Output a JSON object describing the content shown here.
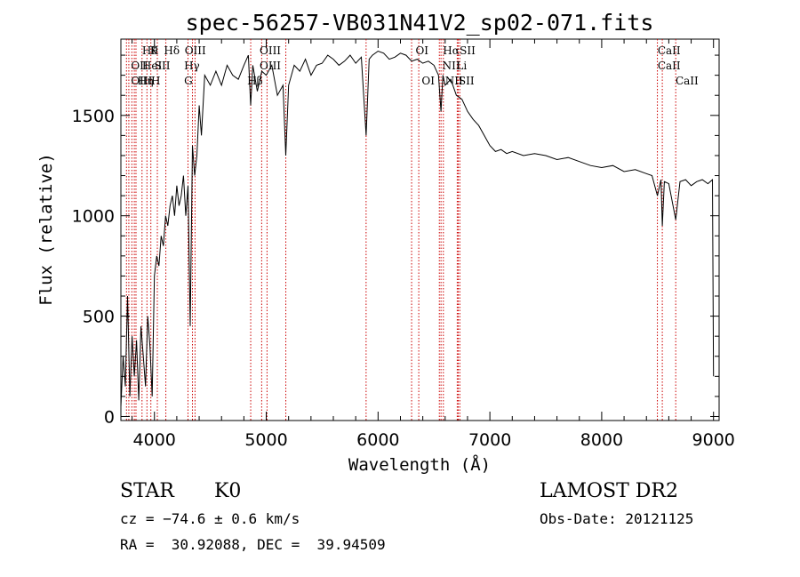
{
  "chart_data": {
    "type": "line",
    "title": "spec-56257-VB031N41V2_sp02-071.fits",
    "xlabel": "Wavelength (Å)",
    "ylabel": "Flux (relative)",
    "xlim": [
      3700,
      9050
    ],
    "ylim": [
      -20,
      1880
    ],
    "x_ticks": [
      4000,
      5000,
      6000,
      7000,
      8000,
      9000
    ],
    "y_ticks": [
      0,
      500,
      1000,
      1500
    ],
    "grid": false,
    "series_color": "#000000",
    "line_marker_color": "#cc0000",
    "spectrum": {
      "x": [
        3700,
        3720,
        3740,
        3760,
        3780,
        3800,
        3820,
        3840,
        3860,
        3880,
        3900,
        3920,
        3940,
        3960,
        3980,
        4000,
        4020,
        4040,
        4060,
        4080,
        4100,
        4120,
        4140,
        4160,
        4180,
        4200,
        4220,
        4240,
        4260,
        4280,
        4300,
        4320,
        4340,
        4360,
        4380,
        4400,
        4420,
        4450,
        4500,
        4550,
        4600,
        4650,
        4700,
        4750,
        4800,
        4840,
        4861,
        4880,
        4920,
        4960,
        5000,
        5050,
        5100,
        5150,
        5175,
        5200,
        5250,
        5300,
        5350,
        5400,
        5450,
        5500,
        5550,
        5600,
        5650,
        5700,
        5750,
        5800,
        5850,
        5893,
        5920,
        5950,
        6000,
        6050,
        6100,
        6150,
        6200,
        6250,
        6300,
        6350,
        6400,
        6450,
        6500,
        6540,
        6563,
        6580,
        6600,
        6650,
        6700,
        6750,
        6800,
        6850,
        6900,
        6950,
        7000,
        7050,
        7100,
        7150,
        7200,
        7300,
        7400,
        7500,
        7600,
        7700,
        7800,
        7900,
        8000,
        8100,
        8200,
        8300,
        8400,
        8450,
        8498,
        8530,
        8542,
        8560,
        8600,
        8662,
        8700,
        8750,
        8800,
        8850,
        8900,
        8950,
        8990,
        9000
      ],
      "y": [
        50,
        300,
        150,
        600,
        100,
        400,
        200,
        380,
        80,
        450,
        300,
        150,
        500,
        350,
        100,
        700,
        800,
        750,
        900,
        850,
        1000,
        950,
        1050,
        1100,
        1000,
        1150,
        1050,
        1100,
        1200,
        1000,
        1150,
        450,
        1350,
        1200,
        1300,
        1550,
        1400,
        1700,
        1650,
        1720,
        1650,
        1750,
        1700,
        1680,
        1750,
        1800,
        1550,
        1750,
        1620,
        1720,
        1700,
        1750,
        1600,
        1650,
        1300,
        1650,
        1750,
        1720,
        1780,
        1700,
        1750,
        1760,
        1800,
        1780,
        1750,
        1770,
        1800,
        1760,
        1790,
        1400,
        1780,
        1800,
        1820,
        1810,
        1780,
        1790,
        1810,
        1800,
        1770,
        1780,
        1760,
        1770,
        1750,
        1700,
        1520,
        1700,
        1650,
        1680,
        1600,
        1580,
        1520,
        1480,
        1450,
        1400,
        1350,
        1320,
        1330,
        1310,
        1320,
        1300,
        1310,
        1300,
        1280,
        1290,
        1270,
        1250,
        1240,
        1250,
        1220,
        1230,
        1210,
        1200,
        1100,
        1180,
        950,
        1170,
        1160,
        980,
        1170,
        1180,
        1150,
        1170,
        1180,
        1160,
        1180,
        200
      ]
    },
    "line_markers": [
      {
        "x": 3750,
        "label": ""
      },
      {
        "x": 3771,
        "label": ""
      },
      {
        "x": 3798,
        "label": ""
      },
      {
        "x": 3820,
        "label": ""
      },
      {
        "x": 3835,
        "label": ""
      },
      {
        "x": 3889,
        "label": ""
      },
      {
        "x": 3933,
        "label": ""
      },
      {
        "x": 3968,
        "label": ""
      },
      {
        "x": 4026,
        "label": ""
      },
      {
        "x": 4102,
        "label": ""
      },
      {
        "x": 4300,
        "label": ""
      },
      {
        "x": 4340,
        "label": ""
      },
      {
        "x": 4363,
        "label": ""
      },
      {
        "x": 4861,
        "label": ""
      },
      {
        "x": 4959,
        "label": ""
      },
      {
        "x": 5007,
        "label": ""
      },
      {
        "x": 5175,
        "label": ""
      },
      {
        "x": 5893,
        "label": ""
      },
      {
        "x": 6300,
        "label": ""
      },
      {
        "x": 6364,
        "label": ""
      },
      {
        "x": 6548,
        "label": ""
      },
      {
        "x": 6563,
        "label": ""
      },
      {
        "x": 6584,
        "label": ""
      },
      {
        "x": 6708,
        "label": ""
      },
      {
        "x": 6717,
        "label": ""
      },
      {
        "x": 6731,
        "label": ""
      },
      {
        "x": 8498,
        "label": ""
      },
      {
        "x": 8542,
        "label": ""
      },
      {
        "x": 8662,
        "label": ""
      }
    ],
    "line_labels": [
      {
        "x": 3890,
        "row": 0,
        "text": "Hθ"
      },
      {
        "x": 3960,
        "row": 0,
        "text": "K"
      },
      {
        "x": 4085,
        "row": 0,
        "text": "Hδ"
      },
      {
        "x": 4270,
        "row": 0,
        "text": "OIII"
      },
      {
        "x": 4940,
        "row": 0,
        "text": "OIII"
      },
      {
        "x": 6335,
        "row": 0,
        "text": "OI"
      },
      {
        "x": 6580,
        "row": 0,
        "text": "Hα"
      },
      {
        "x": 6730,
        "row": 0,
        "text": "SII"
      },
      {
        "x": 8500,
        "row": 0,
        "text": "CaII"
      },
      {
        "x": 3790,
        "row": 1,
        "text": "OII"
      },
      {
        "x": 3890,
        "row": 1,
        "text": "HeI"
      },
      {
        "x": 4000,
        "row": 1,
        "text": "SII"
      },
      {
        "x": 4265,
        "row": 1,
        "text": "Hγ"
      },
      {
        "x": 4940,
        "row": 1,
        "text": "OIII"
      },
      {
        "x": 6575,
        "row": 1,
        "text": "NII"
      },
      {
        "x": 6700,
        "row": 1,
        "text": "Li"
      },
      {
        "x": 8500,
        "row": 1,
        "text": "CaII"
      },
      {
        "x": 3790,
        "row": 2,
        "text": "OIII"
      },
      {
        "x": 3850,
        "row": 2,
        "text": "Hη"
      },
      {
        "x": 3970,
        "row": 2,
        "text": "H"
      },
      {
        "x": 4265,
        "row": 2,
        "text": "G"
      },
      {
        "x": 4830,
        "row": 2,
        "text": "Hβ"
      },
      {
        "x": 6390,
        "row": 2,
        "text": "OI"
      },
      {
        "x": 6600,
        "row": 2,
        "text": "NII"
      },
      {
        "x": 6720,
        "row": 2,
        "text": "SII"
      },
      {
        "x": 8660,
        "row": 2,
        "text": "CaII"
      }
    ]
  },
  "info": {
    "object_class": "STAR",
    "subclass": "K0",
    "survey": "LAMOST DR2",
    "redshift": "cz = −74.6 ± 0.6 km/s",
    "obs_date": "Obs-Date: 20121125",
    "coords": "RA =  30.92088, DEC =  39.94509"
  }
}
